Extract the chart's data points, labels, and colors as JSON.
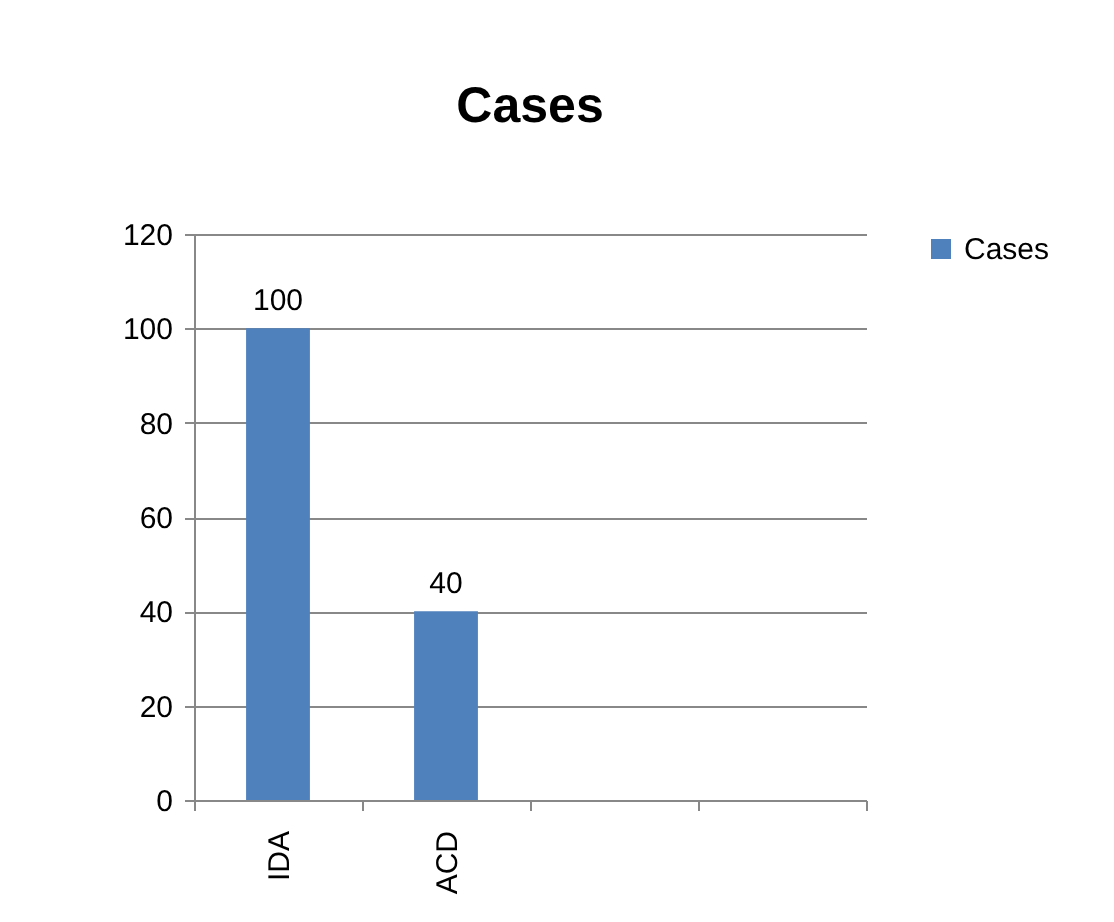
{
  "chart_data": {
    "type": "bar",
    "title": "Cases",
    "categories": [
      "IDA",
      "ACD",
      null,
      null
    ],
    "series": [
      {
        "name": "Cases",
        "color": "#4f81bd",
        "values": [
          100,
          40,
          null,
          null
        ]
      }
    ],
    "ylim": [
      0,
      120
    ],
    "yticks": [
      0,
      20,
      40,
      60,
      80,
      100,
      120
    ],
    "grid": "y",
    "legend": "right",
    "data_labels": true
  }
}
